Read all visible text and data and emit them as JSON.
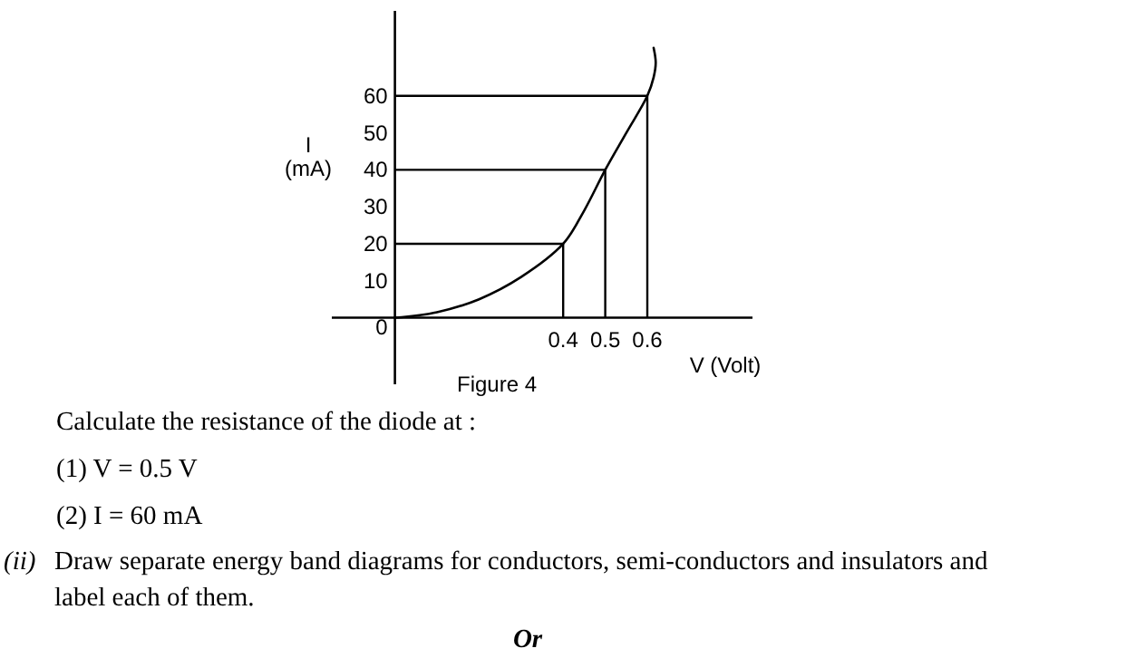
{
  "chart_data": {
    "type": "line",
    "xlabel": "V (Volt)",
    "ylabel": "I (mA)",
    "x": [
      0,
      0.1,
      0.2,
      0.3,
      0.4,
      0.45,
      0.5,
      0.55,
      0.6,
      0.615,
      0.62,
      0.615
    ],
    "values": [
      0,
      1.5,
      5,
      11,
      20,
      29,
      40,
      50,
      60,
      65,
      69,
      73
    ],
    "color": "#000000",
    "xlim": [
      -0.15,
      0.85
    ],
    "ylim": [
      -18,
      83
    ],
    "xticks": [
      0.4,
      0.5,
      0.6
    ],
    "yticks": [
      0,
      10,
      20,
      30,
      40,
      50,
      60
    ],
    "ref_lines": [
      {
        "axis": "x",
        "value": 0.4,
        "label": null
      },
      {
        "axis": "x",
        "value": 0.5,
        "label": null
      },
      {
        "axis": "x",
        "value": 0.6,
        "label": null
      },
      {
        "axis": "y",
        "value": 20,
        "label": null
      },
      {
        "axis": "y",
        "value": 40,
        "label": null
      },
      {
        "axis": "y",
        "value": 60,
        "label": null
      }
    ],
    "annotations": [
      "Figure 4",
      "Calculate the resistance of the diode at :",
      "(1) V = 0.5 V",
      "(2) I = 60 mA",
      "(ii) Draw separate energy band diagrams for conductors, semi-conductors and insulators and label each of them.",
      "Or"
    ]
  }
}
